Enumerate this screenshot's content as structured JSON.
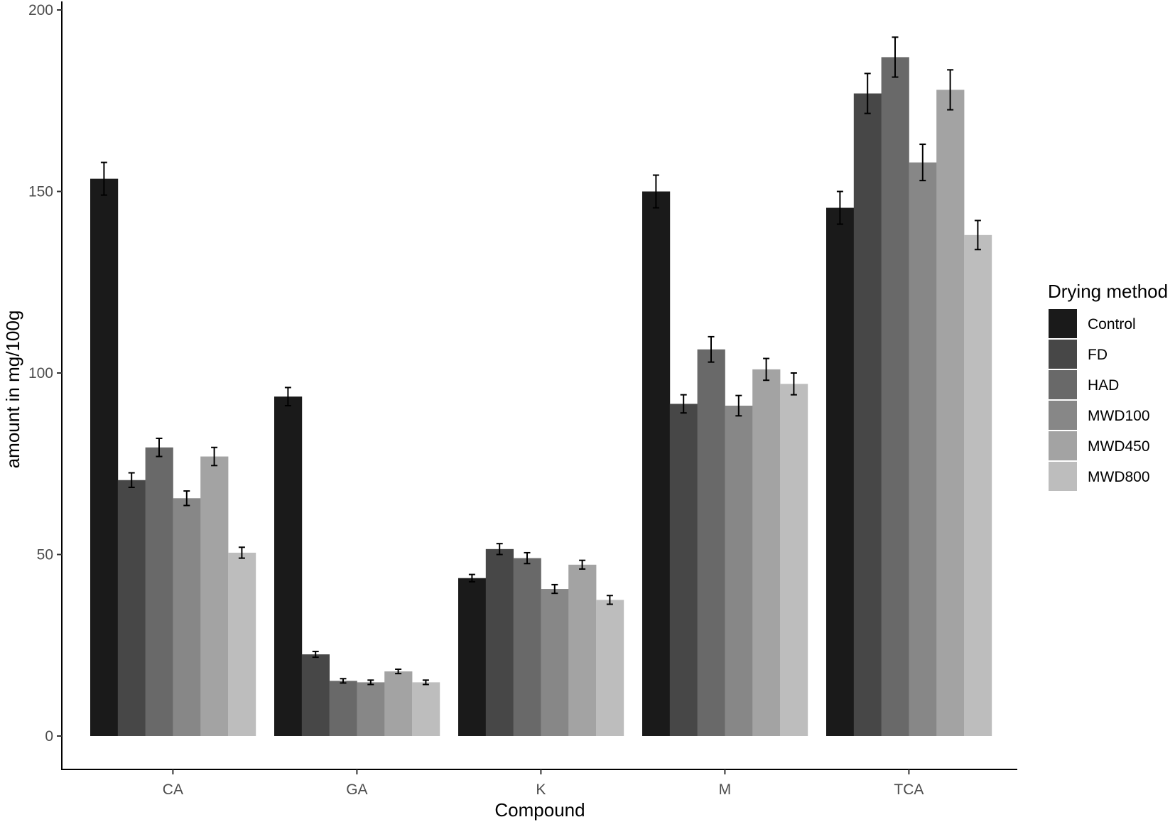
{
  "chart_data": {
    "type": "bar",
    "xlabel": "Compound",
    "ylabel": "amount in mg/100g",
    "ylim": [
      -9,
      202
    ],
    "yticks": [
      0,
      50,
      100,
      150,
      200
    ],
    "categories": [
      "CA",
      "GA",
      "K",
      "M",
      "TCA"
    ],
    "legend": {
      "title": "Drying method",
      "position": "right"
    },
    "grid": false,
    "series": [
      {
        "name": "Control",
        "color": "#1a1a1a",
        "values": [
          153.5,
          93.5,
          43.5,
          150,
          145.5
        ],
        "errors": [
          4.5,
          2.5,
          1,
          4.5,
          4.5
        ]
      },
      {
        "name": "FD",
        "color": "#474747",
        "values": [
          70.5,
          22.5,
          51.5,
          91.5,
          177
        ],
        "errors": [
          2,
          0.8,
          1.5,
          2.5,
          5.5
        ]
      },
      {
        "name": "HAD",
        "color": "#696969",
        "values": [
          79.5,
          15.2,
          49,
          106.5,
          187
        ],
        "errors": [
          2.5,
          0.6,
          1.5,
          3.5,
          5.5
        ]
      },
      {
        "name": "MWD100",
        "color": "#878787",
        "values": [
          65.5,
          14.8,
          40.5,
          91,
          158
        ],
        "errors": [
          2,
          0.6,
          1.2,
          2.8,
          5
        ]
      },
      {
        "name": "MWD450",
        "color": "#a3a3a3",
        "values": [
          77,
          17.8,
          47.2,
          101,
          178
        ],
        "errors": [
          2.5,
          0.6,
          1.2,
          3,
          5.5
        ]
      },
      {
        "name": "MWD800",
        "color": "#bdbdbd",
        "values": [
          50.5,
          14.8,
          37.5,
          97,
          138
        ],
        "errors": [
          1.5,
          0.6,
          1.2,
          3,
          4
        ]
      }
    ]
  }
}
